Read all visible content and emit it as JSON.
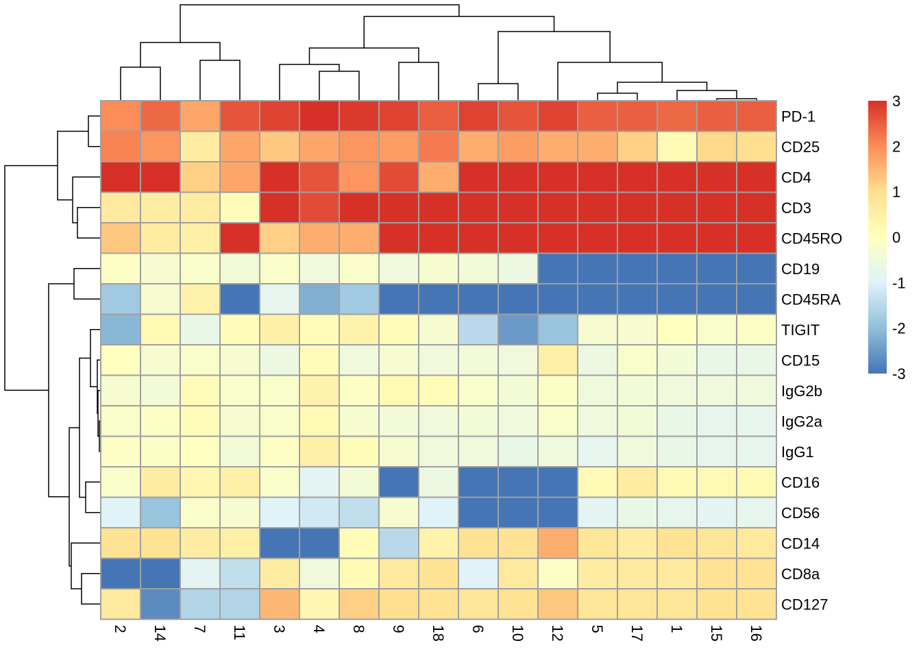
{
  "chart_data": {
    "type": "heatmap",
    "title": "",
    "xlabel": "",
    "ylabel": "",
    "columns": [
      "2",
      "14",
      "7",
      "11",
      "3",
      "4",
      "8",
      "9",
      "18",
      "6",
      "10",
      "12",
      "5",
      "17",
      "1",
      "15",
      "16"
    ],
    "rows": [
      "PD-1",
      "CD25",
      "CD4",
      "CD3",
      "CD45RO",
      "CD19",
      "CD45RA",
      "TIGIT",
      "CD15",
      "IgG2b",
      "IgG2a",
      "IgG1",
      "CD16",
      "CD56",
      "CD14",
      "CD8a",
      "CD127"
    ],
    "values": [
      [
        2.0,
        2.4,
        1.7,
        2.6,
        2.8,
        3.0,
        2.9,
        2.8,
        2.5,
        2.8,
        2.6,
        2.8,
        2.5,
        2.5,
        2.4,
        2.5,
        2.5
      ],
      [
        2.1,
        1.9,
        0.6,
        1.7,
        1.3,
        1.7,
        1.9,
        1.8,
        2.2,
        1.6,
        1.8,
        1.6,
        1.6,
        1.2,
        0.2,
        1.1,
        1.0
      ],
      [
        3.0,
        3.0,
        1.2,
        1.7,
        3.0,
        2.6,
        1.9,
        2.7,
        1.6,
        3.0,
        3.0,
        3.0,
        3.0,
        3.0,
        3.0,
        3.0,
        3.0
      ],
      [
        0.7,
        0.6,
        0.6,
        0.1,
        3.0,
        2.7,
        3.0,
        3.0,
        3.0,
        3.0,
        3.0,
        3.0,
        3.0,
        3.0,
        3.0,
        3.0,
        3.0
      ],
      [
        1.3,
        0.6,
        0.5,
        3.0,
        1.2,
        1.6,
        1.6,
        3.0,
        3.0,
        3.0,
        3.0,
        3.0,
        3.0,
        3.0,
        3.0,
        3.0,
        3.0
      ],
      [
        -0.1,
        -0.3,
        -0.2,
        -0.4,
        -0.2,
        -0.5,
        -0.2,
        -0.5,
        -0.3,
        -0.4,
        -0.6,
        -3.0,
        -3.0,
        -3.0,
        -3.0,
        -3.0,
        -3.0
      ],
      [
        -1.8,
        -0.3,
        0.4,
        -3.0,
        -0.8,
        -2.2,
        -1.8,
        -3.0,
        -3.0,
        -3.0,
        -3.0,
        -3.0,
        -3.0,
        -3.0,
        -3.0,
        -3.0,
        -3.0
      ],
      [
        -2.1,
        0.2,
        -0.7,
        0.1,
        0.5,
        0.1,
        0.4,
        0.1,
        -0.3,
        -1.5,
        -2.5,
        -1.9,
        -0.3,
        -0.3,
        0.0,
        -0.2,
        -0.1
      ],
      [
        0.0,
        -0.3,
        -0.2,
        -0.3,
        -0.6,
        0.1,
        -0.5,
        -0.3,
        -0.5,
        -0.4,
        -0.5,
        0.5,
        -0.6,
        -0.2,
        -0.4,
        -0.7,
        -0.7
      ],
      [
        -0.3,
        -0.4,
        0.1,
        -0.2,
        -0.2,
        0.4,
        -0.1,
        0.2,
        0.1,
        -0.2,
        -0.4,
        -0.1,
        -0.5,
        -0.4,
        -0.5,
        -0.5,
        -0.5
      ],
      [
        -0.2,
        -0.1,
        0.1,
        -0.3,
        -0.2,
        0.2,
        -0.3,
        -0.4,
        -0.5,
        -0.4,
        -0.5,
        -0.2,
        -0.5,
        -0.4,
        -0.7,
        -0.8,
        -0.8
      ],
      [
        -0.1,
        -0.1,
        0.0,
        -0.4,
        -0.1,
        0.5,
        0.1,
        -0.3,
        -0.5,
        -0.5,
        -0.7,
        -0.5,
        -0.8,
        -0.5,
        -0.7,
        -0.8,
        -0.8
      ],
      [
        -0.2,
        0.6,
        0.3,
        0.5,
        -0.2,
        -0.9,
        -0.4,
        -3.0,
        -0.6,
        -3.0,
        -3.0,
        -3.0,
        0.2,
        0.6,
        0.2,
        0.2,
        0.2
      ],
      [
        -1.0,
        -1.9,
        -0.2,
        -0.3,
        -1.0,
        -1.2,
        -1.4,
        -0.3,
        -1.0,
        -3.0,
        -3.0,
        -3.0,
        -0.9,
        -0.7,
        -0.8,
        -0.9,
        -0.8
      ],
      [
        0.9,
        0.9,
        0.6,
        0.5,
        -3.0,
        -3.0,
        0.1,
        -1.5,
        0.4,
        0.9,
        0.9,
        1.6,
        0.8,
        0.6,
        0.9,
        0.8,
        0.7
      ],
      [
        -3.0,
        -3.0,
        -0.9,
        -1.4,
        0.6,
        -0.5,
        0.2,
        0.7,
        0.9,
        -1.0,
        0.7,
        -0.1,
        0.6,
        0.7,
        0.7,
        0.9,
        0.9
      ],
      [
        0.7,
        -2.7,
        -1.6,
        -1.6,
        1.5,
        0.3,
        1.2,
        1.0,
        0.9,
        0.8,
        0.9,
        1.3,
        0.8,
        0.8,
        0.8,
        0.9,
        0.9
      ]
    ],
    "color_scale": {
      "min": -3,
      "max": 3,
      "stops": [
        {
          "value": -3,
          "color": "#4575B4"
        },
        {
          "value": -2,
          "color": "#91BFDB"
        },
        {
          "value": -1,
          "color": "#E0F3F8"
        },
        {
          "value": 0,
          "color": "#FFFFBF"
        },
        {
          "value": 1,
          "color": "#FEE090"
        },
        {
          "value": 2,
          "color": "#FC8D59"
        },
        {
          "value": 3,
          "color": "#D73027"
        }
      ],
      "legend_ticks": [
        "3",
        "2",
        "1",
        "0",
        "-1",
        "-2",
        "-3"
      ],
      "legend_position": "right"
    },
    "cell_border_color": "#A0A0A0",
    "column_dendrogram": "top",
    "row_dendrogram": "left",
    "grid": false
  }
}
